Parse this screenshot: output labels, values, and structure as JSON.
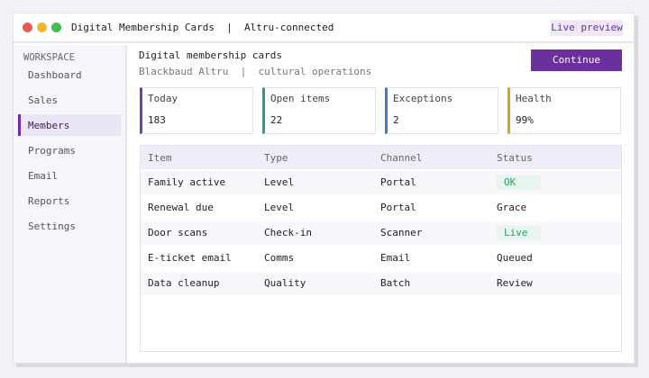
{
  "window": {
    "title": "Digital Membership Cards  |  Altru-connected",
    "badge": "Live preview"
  },
  "sidebar": {
    "heading": "WORKSPACE",
    "items": [
      "Dashboard",
      "Sales",
      "Members",
      "Programs",
      "Email",
      "Reports",
      "Settings"
    ],
    "active": 2
  },
  "header": {
    "title": "Digital membership cards",
    "subtitle": "Blackbaud Altru  |  cultural operations",
    "button": "Continue"
  },
  "cards": [
    {
      "label": "Today",
      "value": 183,
      "color": "#7b3aa8"
    },
    {
      "label": "Open items",
      "value": 22,
      "color": "#2a9d84"
    },
    {
      "label": "Exceptions",
      "value": 2,
      "color": "#3b7fc4"
    },
    {
      "label": "Health",
      "value": "99%",
      "color": "#d9a21b"
    }
  ],
  "table": {
    "columns": [
      "Item",
      "Type",
      "Channel",
      "Status"
    ],
    "rows": [
      [
        "Family active",
        "Level",
        "Portal",
        "OK"
      ],
      [
        "Renewal due",
        "Level",
        "Portal",
        "Grace"
      ],
      [
        "Door scans",
        "Check-in",
        "Scanner",
        "Live"
      ],
      [
        "E-ticket email",
        "Comms",
        "Email",
        "Queued"
      ],
      [
        "Data cleanup",
        "Quality",
        "Batch",
        "Review"
      ]
    ],
    "badged": [
      "OK",
      "Live"
    ]
  }
}
